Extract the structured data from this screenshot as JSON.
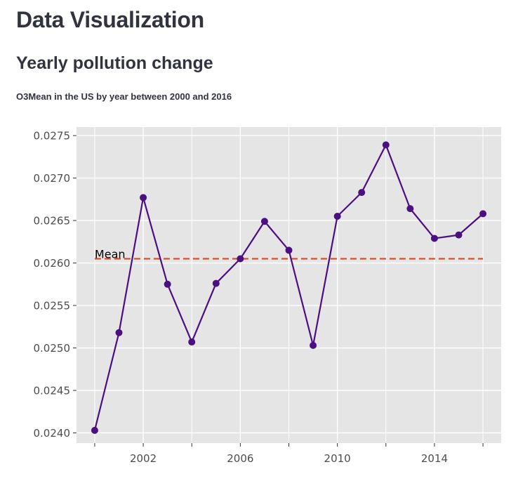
{
  "page": {
    "title": "Data Visualization"
  },
  "chart_section": {
    "heading": "Yearly pollution change",
    "caption": "O3Mean in the US by year between 2000 and 2016"
  },
  "colors": {
    "panel_background": "#e5e5e5",
    "grid": "#ffffff",
    "series_line": "#4b0f80",
    "series_point": "#4b0f80",
    "mean_line": "#d8512b",
    "tick_text": "#4d4d4d",
    "annotation_text": "#000000"
  },
  "chart_data": {
    "type": "line",
    "title": "Yearly pollution change",
    "subtitle": "O3Mean in the US by year between 2000 and 2016",
    "xlabel": "",
    "ylabel": "",
    "x": [
      2000,
      2001,
      2002,
      2003,
      2004,
      2005,
      2006,
      2007,
      2008,
      2009,
      2010,
      2011,
      2012,
      2013,
      2014,
      2015,
      2016
    ],
    "series": [
      {
        "name": "O3Mean",
        "values": [
          0.02403,
          0.02518,
          0.02677,
          0.02575,
          0.02507,
          0.02576,
          0.02605,
          0.02649,
          0.02615,
          0.02503,
          0.02655,
          0.02683,
          0.02739,
          0.02664,
          0.02629,
          0.02633,
          0.02658
        ]
      }
    ],
    "mean": {
      "label": "Mean",
      "value": 0.02605
    },
    "xlim": [
      1999.25,
      2016.75
    ],
    "ylim": [
      0.02388,
      0.0276
    ],
    "x_ticks": [
      2000,
      2002,
      2004,
      2006,
      2008,
      2010,
      2012,
      2014,
      2016
    ],
    "x_tick_labels": [
      "",
      "2002",
      "",
      "2006",
      "",
      "2010",
      "",
      "2014",
      ""
    ],
    "y_ticks": [
      0.024,
      0.0245,
      0.025,
      0.0255,
      0.026,
      0.0265,
      0.027,
      0.0275
    ],
    "y_tick_labels": [
      "0.0240",
      "0.0245",
      "0.0250",
      "0.0255",
      "0.0260",
      "0.0265",
      "0.0270",
      "0.0275"
    ],
    "grid": true,
    "legend": "none"
  }
}
